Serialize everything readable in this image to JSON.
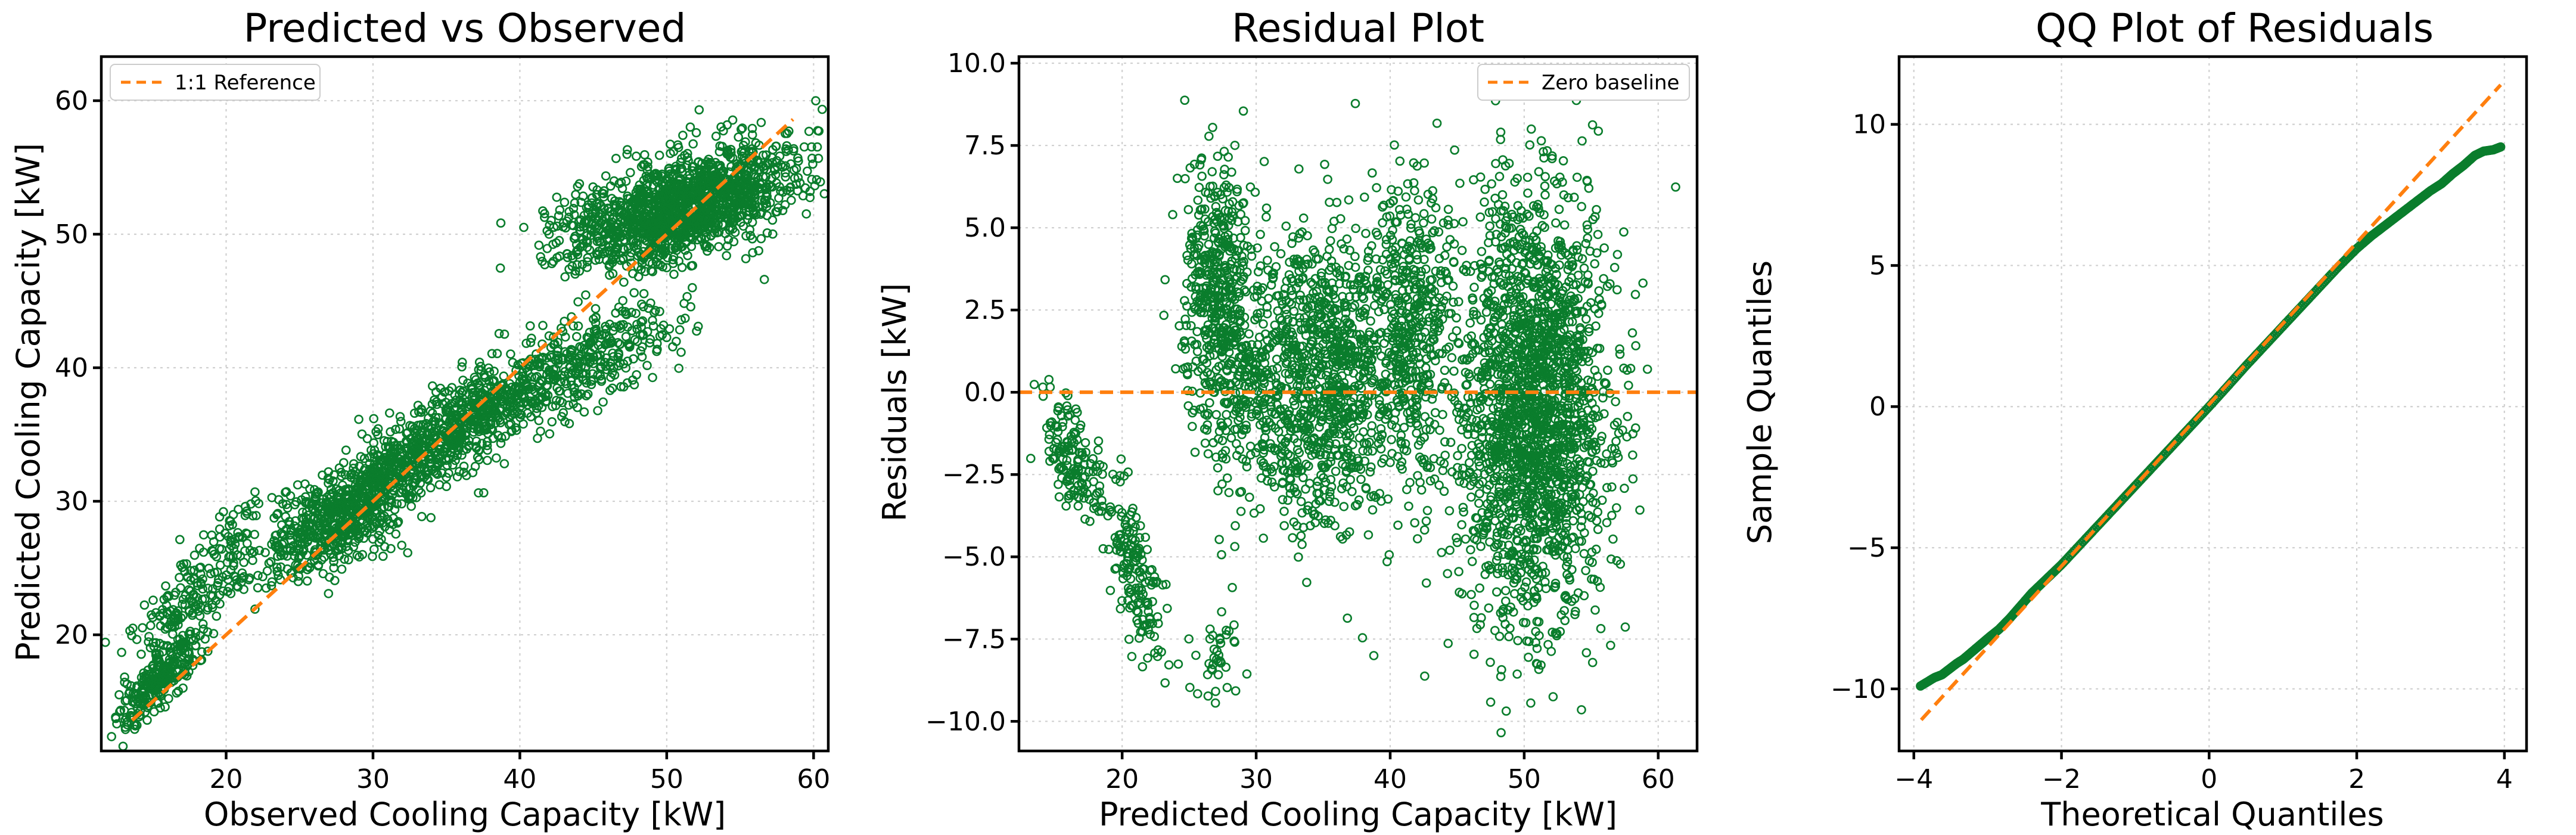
{
  "colors": {
    "points": "#0a7d2c",
    "reference": "#ff7f0e"
  },
  "chart_data": [
    {
      "type": "scatter",
      "title": "Predicted vs Observed",
      "xlabel": "Observed Cooling Capacity [kW]",
      "ylabel": "Predicted Cooling Capacity [kW]",
      "xlim": [
        11.5,
        61
      ],
      "ylim": [
        11.3,
        63.3
      ],
      "xticks": [
        20,
        30,
        40,
        50,
        60
      ],
      "yticks": [
        20,
        30,
        40,
        50,
        60
      ],
      "grid": true,
      "legend": {
        "placement": "top-left",
        "entries": [
          "1:1 Reference"
        ]
      },
      "reference_line": {
        "name": "1:1 Reference",
        "x": [
          13.6,
          58.6
        ],
        "y": [
          13.6,
          58.6
        ]
      },
      "clusters": [
        {
          "x_center": 15.5,
          "y_center": 16.5,
          "x_spread": 1.4,
          "y_spread": 1.8,
          "corr": 0.8,
          "count": 260
        },
        {
          "x_center": 17.5,
          "y_center": 22.5,
          "x_spread": 1.8,
          "y_spread": 2.2,
          "corr": 0.7,
          "count": 180
        },
        {
          "x_center": 21.0,
          "y_center": 28.0,
          "x_spread": 1.5,
          "y_spread": 1.5,
          "corr": 0.6,
          "count": 50
        },
        {
          "x_center": 27.5,
          "y_center": 28.5,
          "x_spread": 2.4,
          "y_spread": 2.2,
          "corr": 0.6,
          "count": 520
        },
        {
          "x_center": 32.5,
          "y_center": 33.0,
          "x_spread": 3.0,
          "y_spread": 2.4,
          "corr": 0.75,
          "count": 520
        },
        {
          "x_center": 38.5,
          "y_center": 37.5,
          "x_spread": 3.5,
          "y_spread": 2.2,
          "corr": 0.7,
          "count": 420
        },
        {
          "x_center": 45.0,
          "y_center": 41.0,
          "x_spread": 3.5,
          "y_spread": 2.0,
          "corr": 0.6,
          "count": 260
        },
        {
          "x_center": 51.0,
          "y_center": 52.0,
          "x_spread": 4.0,
          "y_spread": 2.2,
          "corr": 0.55,
          "count": 1500
        }
      ]
    },
    {
      "type": "scatter",
      "title": "Residual Plot",
      "xlabel": "Predicted Cooling Capacity [kW]",
      "ylabel": "Residuals [kW]",
      "xlim": [
        12.3,
        62.9
      ],
      "ylim": [
        -10.9,
        10.2
      ],
      "xticks": [
        20,
        30,
        40,
        50,
        60
      ],
      "yticks": [
        -10.0,
        -7.5,
        -5.0,
        -2.5,
        0.0,
        2.5,
        5.0,
        7.5,
        10.0
      ],
      "ytick_labels": [
        "−10.0",
        "−7.5",
        "−5.0",
        "−2.5",
        "0.0",
        "2.5",
        "5.0",
        "7.5",
        "10.0"
      ],
      "grid": true,
      "legend": {
        "placement": "top-right",
        "entries": [
          "Zero baseline"
        ]
      },
      "reference_line": {
        "name": "Zero baseline",
        "y": 0.0
      },
      "clusters": [
        {
          "x_center": 16.5,
          "y_center": -2.0,
          "x_spread": 1.2,
          "y_spread": 0.9,
          "corr": -0.5,
          "count": 150
        },
        {
          "x_center": 21.0,
          "y_center": -5.5,
          "x_spread": 1.0,
          "y_spread": 1.3,
          "corr": -0.5,
          "count": 160
        },
        {
          "x_center": 27.0,
          "y_center": -8.0,
          "x_spread": 0.9,
          "y_spread": 0.7,
          "corr": 0.0,
          "count": 40
        },
        {
          "x_center": 27.0,
          "y_center": 3.5,
          "x_spread": 1.3,
          "y_spread": 1.8,
          "corr": 0.0,
          "count": 360
        },
        {
          "x_center": 29.0,
          "y_center": 0.5,
          "x_spread": 2.0,
          "y_spread": 1.8,
          "corr": 0.0,
          "count": 300
        },
        {
          "x_center": 35.0,
          "y_center": 0.5,
          "x_spread": 2.7,
          "y_spread": 2.3,
          "corr": 0.0,
          "count": 900
        },
        {
          "x_center": 41.5,
          "y_center": 2.0,
          "x_spread": 1.7,
          "y_spread": 2.4,
          "corr": 0.0,
          "count": 450
        },
        {
          "x_center": 50.5,
          "y_center": -0.5,
          "x_spread": 2.8,
          "y_spread": 3.2,
          "corr": 0.0,
          "count": 2000
        }
      ]
    },
    {
      "type": "scatter",
      "title": "QQ Plot of Residuals",
      "xlabel": "Theoretical Quantiles",
      "ylabel": "Sample Quantiles",
      "xlim": [
        -4.2,
        4.3
      ],
      "ylim": [
        -12.2,
        12.4
      ],
      "xticks": [
        -4,
        -2,
        0,
        2,
        4
      ],
      "xtick_labels": [
        "−4",
        "−2",
        "0",
        "2",
        "4"
      ],
      "yticks": [
        -10,
        -5,
        0,
        5,
        10
      ],
      "ytick_labels": [
        "−10",
        "−5",
        "0",
        "5",
        "10"
      ],
      "grid": true,
      "reference_line": {
        "x": [
          -3.9,
          3.95
        ],
        "y": [
          -11.1,
          11.4
        ]
      },
      "points": [
        [
          -3.91,
          -9.9
        ],
        [
          -3.72,
          -9.6
        ],
        [
          -3.62,
          -9.5
        ],
        [
          -3.52,
          -9.3
        ],
        [
          -3.42,
          -9.1
        ],
        [
          -3.33,
          -8.95
        ],
        [
          -3.24,
          -8.75
        ],
        [
          -3.15,
          -8.55
        ],
        [
          -3.06,
          -8.35
        ],
        [
          -2.97,
          -8.15
        ],
        [
          -2.85,
          -7.9
        ],
        [
          -2.7,
          -7.5
        ],
        [
          -2.55,
          -7.05
        ],
        [
          -2.4,
          -6.6
        ],
        [
          -2.2,
          -6.1
        ],
        [
          -2.0,
          -5.6
        ],
        [
          -1.75,
          -4.9
        ],
        [
          -1.5,
          -4.2
        ],
        [
          -1.25,
          -3.5
        ],
        [
          -1.0,
          -2.8
        ],
        [
          -0.75,
          -2.1
        ],
        [
          -0.5,
          -1.4
        ],
        [
          -0.25,
          -0.7
        ],
        [
          0.0,
          0.0
        ],
        [
          0.25,
          0.72
        ],
        [
          0.5,
          1.45
        ],
        [
          0.75,
          2.15
        ],
        [
          1.0,
          2.85
        ],
        [
          1.25,
          3.55
        ],
        [
          1.5,
          4.25
        ],
        [
          1.75,
          4.95
        ],
        [
          2.0,
          5.6
        ],
        [
          2.2,
          6.05
        ],
        [
          2.4,
          6.45
        ],
        [
          2.6,
          6.85
        ],
        [
          2.8,
          7.25
        ],
        [
          3.0,
          7.65
        ],
        [
          3.15,
          7.9
        ],
        [
          3.3,
          8.25
        ],
        [
          3.45,
          8.55
        ],
        [
          3.6,
          8.9
        ],
        [
          3.72,
          9.05
        ],
        [
          3.85,
          9.1
        ],
        [
          3.95,
          9.2
        ]
      ]
    }
  ]
}
